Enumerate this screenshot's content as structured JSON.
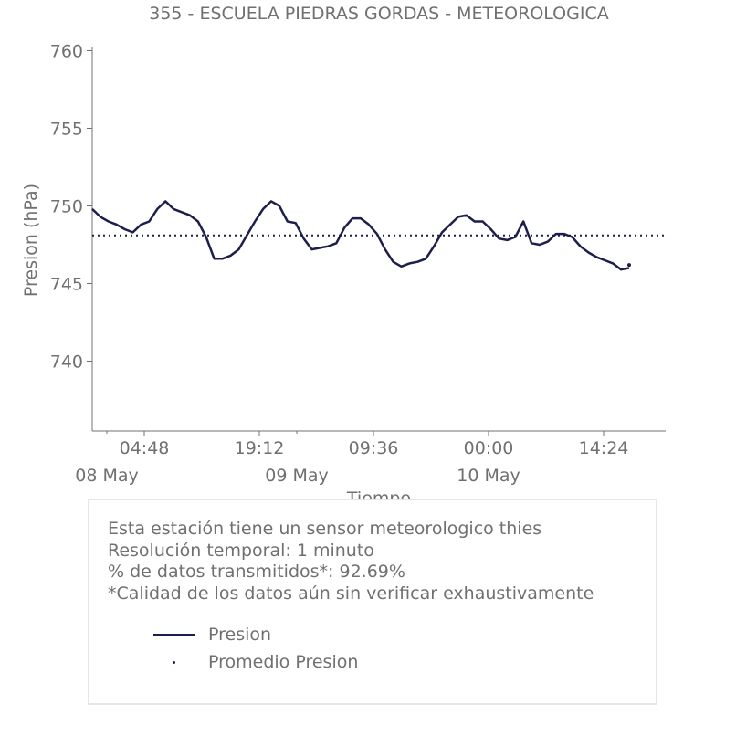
{
  "chart_data": {
    "type": "line",
    "title": "355 - ESCUELA PIEDRAS GORDAS - METEOROLOGICA",
    "ylabel": "Presion (hPa)",
    "xlabel": "Tiempo",
    "ylim": [
      735.5,
      760.5
    ],
    "yticks": [
      "760",
      "755",
      "750",
      "745",
      "740"
    ],
    "ytick_values": [
      760,
      755,
      750,
      745,
      740
    ],
    "xticks_time": [
      "04:48",
      "19:12",
      "09:36",
      "00:00",
      "14:24"
    ],
    "xticks_date": [
      "08 May",
      "09 May",
      "10 May"
    ],
    "average": 748.1,
    "series": [
      {
        "name": "Presion",
        "x": [
          "08 May 00:00",
          "08 May 01:00",
          "08 May 02:00",
          "08 May 03:00",
          "08 May 04:00",
          "08 May 05:00",
          "08 May 06:00",
          "08 May 07:00",
          "08 May 08:00",
          "08 May 09:00",
          "08 May 10:00",
          "08 May 11:00",
          "08 May 12:00",
          "08 May 13:00",
          "08 May 14:00",
          "08 May 15:00",
          "08 May 16:00",
          "08 May 17:00",
          "08 May 18:00",
          "08 May 19:00",
          "08 May 20:00",
          "08 May 21:00",
          "08 May 22:00",
          "08 May 23:00",
          "09 May 00:00",
          "09 May 01:00",
          "09 May 02:00",
          "09 May 03:00",
          "09 May 04:00",
          "09 May 05:00",
          "09 May 06:00",
          "09 May 07:00",
          "09 May 08:00",
          "09 May 09:00",
          "09 May 10:00",
          "09 May 11:00",
          "09 May 12:00",
          "09 May 13:00",
          "09 May 14:00",
          "09 May 15:00",
          "09 May 16:00",
          "09 May 17:00",
          "09 May 18:00",
          "09 May 19:00",
          "09 May 20:00",
          "09 May 21:00",
          "09 May 22:00",
          "09 May 23:00",
          "10 May 00:00",
          "10 May 01:00",
          "10 May 02:00",
          "10 May 03:00",
          "10 May 04:00",
          "10 May 05:00",
          "10 May 06:00",
          "10 May 07:00",
          "10 May 08:00",
          "10 May 09:00",
          "10 May 10:00",
          "10 May 11:00",
          "10 May 12:00",
          "10 May 13:00",
          "10 May 14:00",
          "10 May 15:00",
          "10 May 16:00",
          "10 May 17:00",
          "10 May 18:00"
        ],
        "values": [
          749.8,
          749.3,
          749.0,
          748.8,
          748.5,
          748.3,
          748.8,
          749.0,
          749.8,
          750.3,
          749.8,
          749.6,
          749.4,
          749.0,
          748.0,
          746.6,
          746.6,
          746.8,
          747.2,
          748.1,
          749.0,
          749.8,
          750.3,
          750.0,
          749.0,
          748.9,
          747.9,
          747.2,
          747.3,
          747.4,
          747.6,
          748.6,
          749.2,
          749.2,
          748.8,
          748.2,
          747.2,
          746.4,
          746.1,
          746.3,
          746.4,
          746.6,
          747.4,
          748.3,
          748.8,
          749.3,
          749.4,
          749.0,
          749.0,
          748.5,
          747.9,
          747.8,
          748.0,
          749.0,
          747.6,
          747.5,
          747.7,
          748.2,
          748.2,
          748.0,
          747.4,
          747.0,
          746.7,
          746.5,
          746.3,
          745.9,
          746.0
        ]
      },
      {
        "name": "Promedio Presion",
        "values": [
          748.1
        ]
      }
    ],
    "grid": false,
    "legend": "bottom (inside info box)"
  },
  "info": {
    "lines": [
      "Esta estación tiene un sensor meteorologico thies",
      "Resolución temporal: 1 minuto",
      "% de datos transmitidos*: 92.69%",
      "*Calidad de los datos aún sin verificar exhaustivamente"
    ]
  },
  "legend": {
    "items": [
      "Presion",
      "Promedio Presion"
    ]
  },
  "colors": {
    "series": "#1d1f4a",
    "text": "#707070",
    "axis": "#707070",
    "box_border": "#e6e6e6"
  }
}
